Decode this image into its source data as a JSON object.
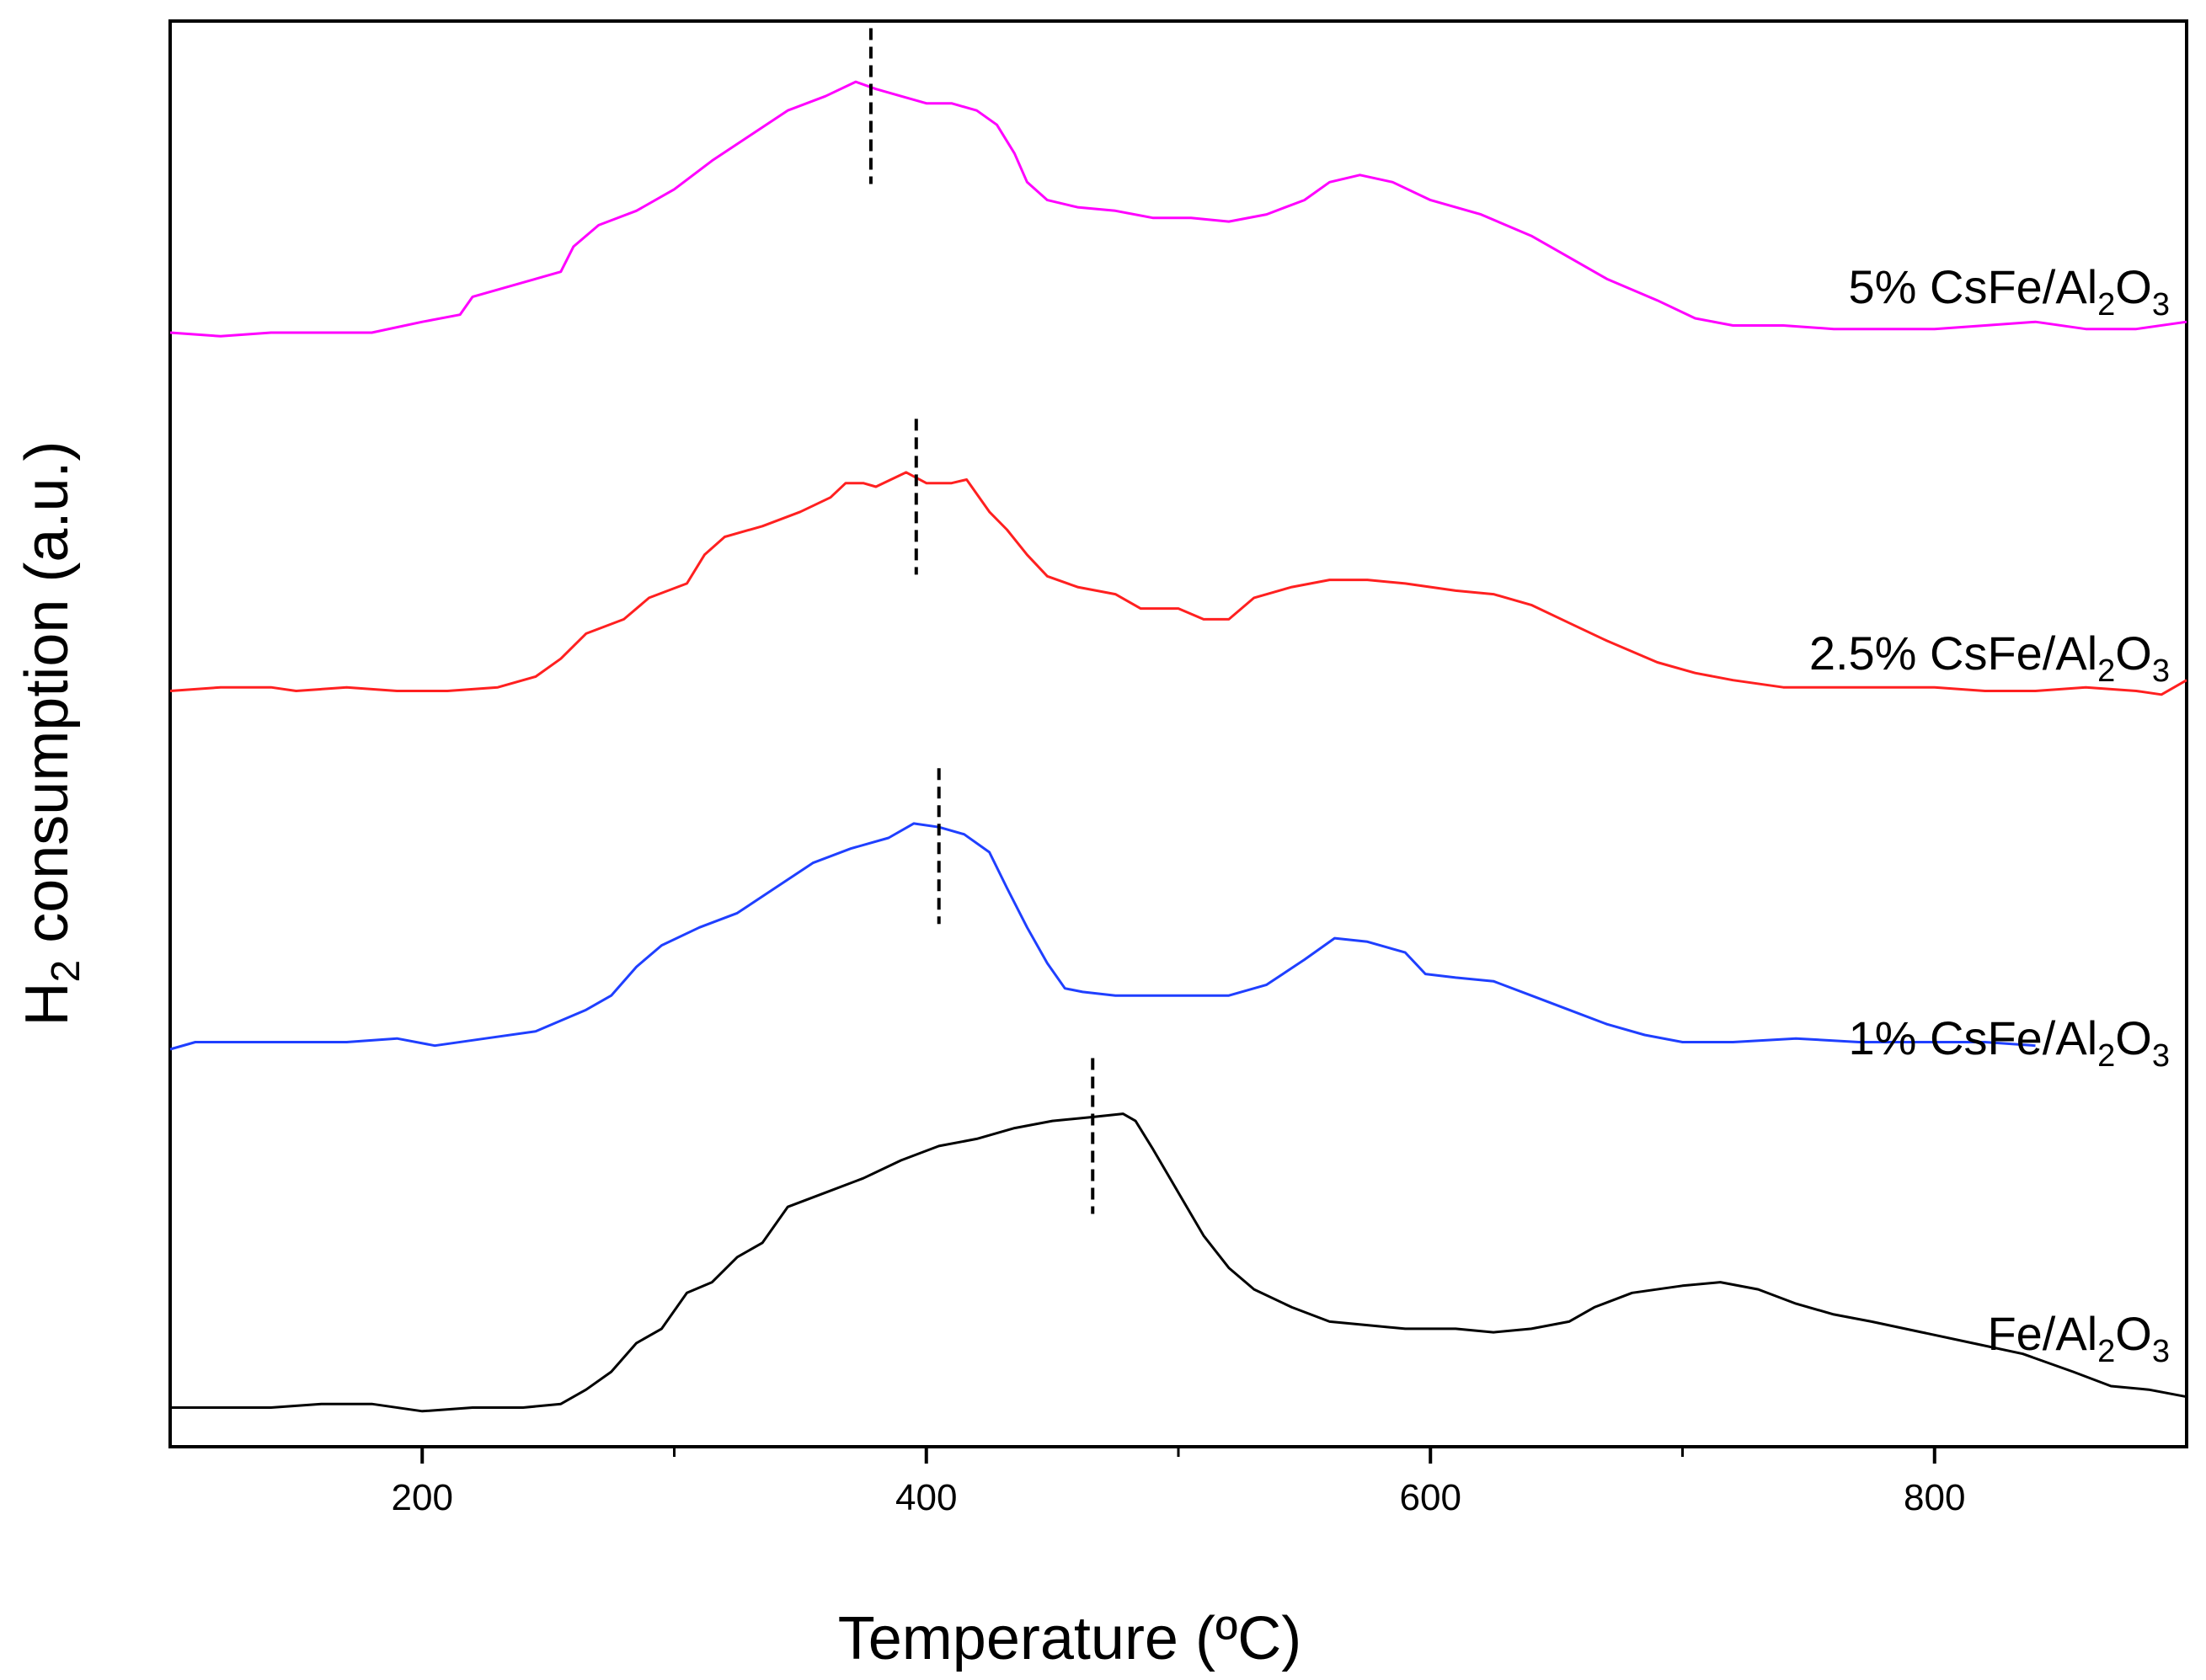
{
  "chart_data": {
    "type": "line",
    "title": "",
    "xlabel": "Temperature (ºC)",
    "ylabel_main": "H",
    "ylabel_sub": "2",
    "ylabel_rest": " consumption (a.u.)",
    "xlim": [
      100,
      900
    ],
    "xticks": [
      200,
      400,
      600,
      800
    ],
    "xtick_labels": [
      "200",
      "400",
      "600",
      "800"
    ],
    "xminor": [
      300,
      500,
      700
    ],
    "yticks_shown": false,
    "series": [
      {
        "name": "5% CsFe/Al2O3",
        "label_main": "5% CsFe/Al",
        "label_sub1": "2",
        "label_mid": "O",
        "label_sub2": "3",
        "color": "#ff00ff",
        "peak_marker_x": 378,
        "points": [
          [
            100,
            2.0
          ],
          [
            120,
            1.99
          ],
          [
            140,
            2.0
          ],
          [
            160,
            2.0
          ],
          [
            180,
            2.0
          ],
          [
            200,
            2.03
          ],
          [
            215,
            2.05
          ],
          [
            220,
            2.1
          ],
          [
            240,
            2.14
          ],
          [
            255,
            2.17
          ],
          [
            260,
            2.24
          ],
          [
            270,
            2.3
          ],
          [
            285,
            2.34
          ],
          [
            300,
            2.4
          ],
          [
            315,
            2.48
          ],
          [
            330,
            2.55
          ],
          [
            345,
            2.62
          ],
          [
            360,
            2.66
          ],
          [
            372,
            2.7
          ],
          [
            380,
            2.68
          ],
          [
            390,
            2.66
          ],
          [
            400,
            2.64
          ],
          [
            410,
            2.64
          ],
          [
            420,
            2.62
          ],
          [
            428,
            2.58
          ],
          [
            435,
            2.5
          ],
          [
            440,
            2.42
          ],
          [
            448,
            2.37
          ],
          [
            460,
            2.35
          ],
          [
            475,
            2.34
          ],
          [
            490,
            2.32
          ],
          [
            505,
            2.32
          ],
          [
            520,
            2.31
          ],
          [
            535,
            2.33
          ],
          [
            550,
            2.37
          ],
          [
            560,
            2.42
          ],
          [
            572,
            2.44
          ],
          [
            585,
            2.42
          ],
          [
            600,
            2.37
          ],
          [
            620,
            2.33
          ],
          [
            640,
            2.27
          ],
          [
            655,
            2.21
          ],
          [
            670,
            2.15
          ],
          [
            690,
            2.09
          ],
          [
            705,
            2.04
          ],
          [
            720,
            2.02
          ],
          [
            740,
            2.02
          ],
          [
            760,
            2.01
          ],
          [
            780,
            2.01
          ],
          [
            800,
            2.01
          ],
          [
            820,
            2.02
          ],
          [
            840,
            2.03
          ],
          [
            860,
            2.01
          ],
          [
            880,
            2.01
          ],
          [
            900,
            2.03
          ]
        ]
      },
      {
        "name": "2.5% CsFe/Al2O3",
        "label_main": "2.5% CsFe/Al",
        "label_sub1": "2",
        "label_mid": "O",
        "label_sub2": "3",
        "color": "#ff2020",
        "peak_marker_x": 396,
        "points": [
          [
            100,
            1.0
          ],
          [
            120,
            1.01
          ],
          [
            140,
            1.01
          ],
          [
            150,
            1.0
          ],
          [
            170,
            1.01
          ],
          [
            190,
            1.0
          ],
          [
            210,
            1.0
          ],
          [
            230,
            1.01
          ],
          [
            245,
            1.04
          ],
          [
            255,
            1.09
          ],
          [
            265,
            1.16
          ],
          [
            280,
            1.2
          ],
          [
            290,
            1.26
          ],
          [
            305,
            1.3
          ],
          [
            312,
            1.38
          ],
          [
            320,
            1.43
          ],
          [
            335,
            1.46
          ],
          [
            350,
            1.5
          ],
          [
            362,
            1.54
          ],
          [
            368,
            1.58
          ],
          [
            375,
            1.58
          ],
          [
            380,
            1.57
          ],
          [
            392,
            1.61
          ],
          [
            400,
            1.58
          ],
          [
            410,
            1.58
          ],
          [
            416,
            1.59
          ],
          [
            420,
            1.55
          ],
          [
            425,
            1.5
          ],
          [
            432,
            1.45
          ],
          [
            440,
            1.38
          ],
          [
            448,
            1.32
          ],
          [
            460,
            1.29
          ],
          [
            475,
            1.27
          ],
          [
            485,
            1.23
          ],
          [
            500,
            1.23
          ],
          [
            510,
            1.2
          ],
          [
            520,
            1.2
          ],
          [
            530,
            1.26
          ],
          [
            545,
            1.29
          ],
          [
            560,
            1.31
          ],
          [
            575,
            1.31
          ],
          [
            590,
            1.3
          ],
          [
            610,
            1.28
          ],
          [
            625,
            1.27
          ],
          [
            640,
            1.24
          ],
          [
            655,
            1.19
          ],
          [
            670,
            1.14
          ],
          [
            690,
            1.08
          ],
          [
            705,
            1.05
          ],
          [
            720,
            1.03
          ],
          [
            740,
            1.01
          ],
          [
            760,
            1.01
          ],
          [
            780,
            1.01
          ],
          [
            800,
            1.01
          ],
          [
            820,
            1.0
          ],
          [
            840,
            1.0
          ],
          [
            860,
            1.01
          ],
          [
            880,
            1.0
          ],
          [
            890,
            0.99
          ],
          [
            900,
            1.03
          ]
        ]
      },
      {
        "name": "1% CsFe/Al2O3",
        "label_main": "1% CsFe/Al",
        "label_sub1": "2",
        "label_mid": "O",
        "label_sub2": "3",
        "color": "#1f3fff",
        "peak_marker_x": 405,
        "points": [
          [
            100,
            0.0
          ],
          [
            110,
            0.02
          ],
          [
            130,
            0.02
          ],
          [
            150,
            0.02
          ],
          [
            170,
            0.02
          ],
          [
            190,
            0.03
          ],
          [
            205,
            0.01
          ],
          [
            225,
            0.03
          ],
          [
            245,
            0.05
          ],
          [
            255,
            0.08
          ],
          [
            265,
            0.11
          ],
          [
            275,
            0.15
          ],
          [
            285,
            0.23
          ],
          [
            295,
            0.29
          ],
          [
            310,
            0.34
          ],
          [
            325,
            0.38
          ],
          [
            340,
            0.45
          ],
          [
            355,
            0.52
          ],
          [
            370,
            0.56
          ],
          [
            385,
            0.59
          ],
          [
            395,
            0.63
          ],
          [
            405,
            0.62
          ],
          [
            415,
            0.6
          ],
          [
            425,
            0.55
          ],
          [
            432,
            0.45
          ],
          [
            440,
            0.34
          ],
          [
            448,
            0.24
          ],
          [
            455,
            0.17
          ],
          [
            462,
            0.16
          ],
          [
            475,
            0.15
          ],
          [
            490,
            0.15
          ],
          [
            505,
            0.15
          ],
          [
            520,
            0.15
          ],
          [
            535,
            0.18
          ],
          [
            550,
            0.25
          ],
          [
            562,
            0.31
          ],
          [
            575,
            0.3
          ],
          [
            590,
            0.27
          ],
          [
            598,
            0.21
          ],
          [
            610,
            0.2
          ],
          [
            625,
            0.19
          ],
          [
            640,
            0.15
          ],
          [
            655,
            0.11
          ],
          [
            670,
            0.07
          ],
          [
            685,
            0.04
          ],
          [
            700,
            0.02
          ],
          [
            720,
            0.02
          ],
          [
            745,
            0.03
          ],
          [
            770,
            0.02
          ],
          [
            800,
            0.02
          ],
          [
            820,
            0.02
          ],
          [
            840,
            0.01
          ]
        ]
      },
      {
        "name": "Fe/Al2O3",
        "label_main": "Fe/Al",
        "label_sub1": "2",
        "label_mid": "O",
        "label_sub2": "3",
        "color": "#000000",
        "peak_marker_x": 466,
        "points": [
          [
            100,
            -1.0
          ],
          [
            120,
            -1.0
          ],
          [
            140,
            -1.0
          ],
          [
            160,
            -0.99
          ],
          [
            180,
            -0.99
          ],
          [
            200,
            -1.01
          ],
          [
            220,
            -1.0
          ],
          [
            240,
            -1.0
          ],
          [
            255,
            -0.99
          ],
          [
            265,
            -0.95
          ],
          [
            275,
            -0.9
          ],
          [
            285,
            -0.82
          ],
          [
            295,
            -0.78
          ],
          [
            305,
            -0.68
          ],
          [
            315,
            -0.65
          ],
          [
            325,
            -0.58
          ],
          [
            335,
            -0.54
          ],
          [
            345,
            -0.44
          ],
          [
            360,
            -0.4
          ],
          [
            375,
            -0.36
          ],
          [
            390,
            -0.31
          ],
          [
            405,
            -0.27
          ],
          [
            420,
            -0.25
          ],
          [
            435,
            -0.22
          ],
          [
            450,
            -0.2
          ],
          [
            465,
            -0.19
          ],
          [
            478,
            -0.18
          ],
          [
            483,
            -0.2
          ],
          [
            490,
            -0.28
          ],
          [
            500,
            -0.4
          ],
          [
            510,
            -0.52
          ],
          [
            520,
            -0.61
          ],
          [
            530,
            -0.67
          ],
          [
            545,
            -0.72
          ],
          [
            560,
            -0.76
          ],
          [
            575,
            -0.77
          ],
          [
            590,
            -0.78
          ],
          [
            610,
            -0.78
          ],
          [
            625,
            -0.79
          ],
          [
            640,
            -0.78
          ],
          [
            655,
            -0.76
          ],
          [
            665,
            -0.72
          ],
          [
            680,
            -0.68
          ],
          [
            700,
            -0.66
          ],
          [
            715,
            -0.65
          ],
          [
            730,
            -0.67
          ],
          [
            745,
            -0.71
          ],
          [
            760,
            -0.74
          ],
          [
            775,
            -0.76
          ],
          [
            795,
            -0.79
          ],
          [
            815,
            -0.82
          ],
          [
            835,
            -0.85
          ],
          [
            855,
            -0.9
          ],
          [
            870,
            -0.94
          ],
          [
            885,
            -0.95
          ],
          [
            900,
            -0.97
          ]
        ]
      }
    ]
  }
}
